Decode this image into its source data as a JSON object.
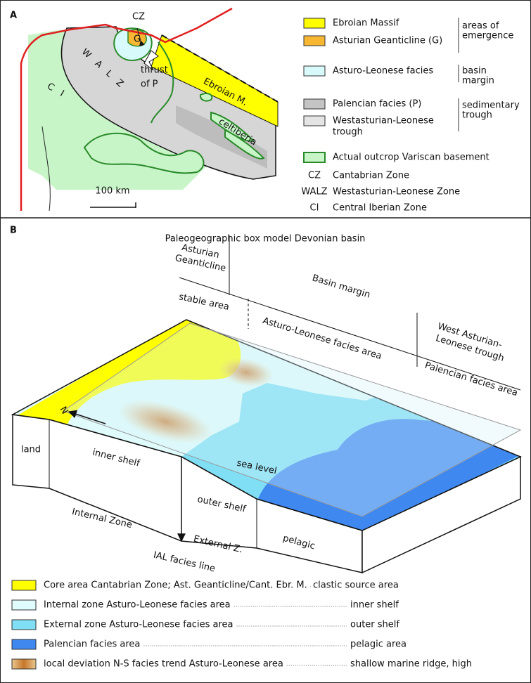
{
  "panel_a": {
    "label": "A",
    "map": {
      "cz": "CZ",
      "g": "G",
      "walz": "W A L Z",
      "ci": "C I",
      "thrust": [
        "thrust",
        "of P"
      ],
      "ebroian": "Ebroian M.",
      "celtiberia": "celtiberia",
      "scale": "100 km"
    },
    "legend": [
      {
        "lines": [
          "Ebroian Massif"
        ]
      },
      {
        "lines": [
          "Asturian Geanticline (G)"
        ]
      },
      {
        "lines": [
          "Asturo-Leonese facies"
        ]
      },
      {
        "lines": [
          "Palencian facies (P)"
        ]
      },
      {
        "lines": [
          "Westasturian-Leonese",
          "trough"
        ]
      },
      {
        "lines": [
          "Actual outcrop Variscan basement"
        ]
      }
    ],
    "groups": [
      [
        "areas of",
        "emergence"
      ],
      [
        "basin",
        "margin"
      ],
      [
        "sedimentary",
        "trough"
      ]
    ],
    "abbreviations": [
      {
        "abbr": "CZ",
        "name": "Cantabrian Zone"
      },
      {
        "abbr": "WALZ",
        "name": "Westasturian-Leonese Zone"
      },
      {
        "abbr": "CI",
        "name": "Central Iberian Zone"
      }
    ]
  },
  "panel_b": {
    "label": "B",
    "title": "Paleogeographic box model Devonian basin",
    "header": {
      "asturian_geanticline": [
        "Asturian",
        "Geanticline"
      ],
      "basin_margin": "Basin margin",
      "stable_area": "stable area",
      "asturo_leonese": "Asturo-Leonese facies area",
      "west_asturian": [
        "West Asturian-",
        "Leonese trough"
      ],
      "palencian": "Palencian facies area"
    },
    "block": {
      "north": "N",
      "land": "land",
      "inner_shelf": "inner shelf",
      "sea_level": "sea level",
      "outer_shelf": "outer shelf",
      "pelagic": "pelagic",
      "internal_zone": "Internal Zone",
      "external_zone": "External Z.",
      "ial": "IAL facies line"
    },
    "legend": [
      {
        "label": "Core area Cantabrian Zone; Ast. Geanticline/Cant. Ebr. M.",
        "meaning": "clastic source area"
      },
      {
        "label": "Internal zone Asturo-Leonese facies area",
        "meaning": "inner shelf"
      },
      {
        "label": "External zone Asturo-Leonese facies area",
        "meaning": "outer shelf"
      },
      {
        "label": "Palencian facies area",
        "meaning": "pelagic area"
      },
      {
        "label": "local deviation N-S facies trend Asturo-Leonese area",
        "meaning": "shallow marine ridge, high"
      }
    ]
  }
}
